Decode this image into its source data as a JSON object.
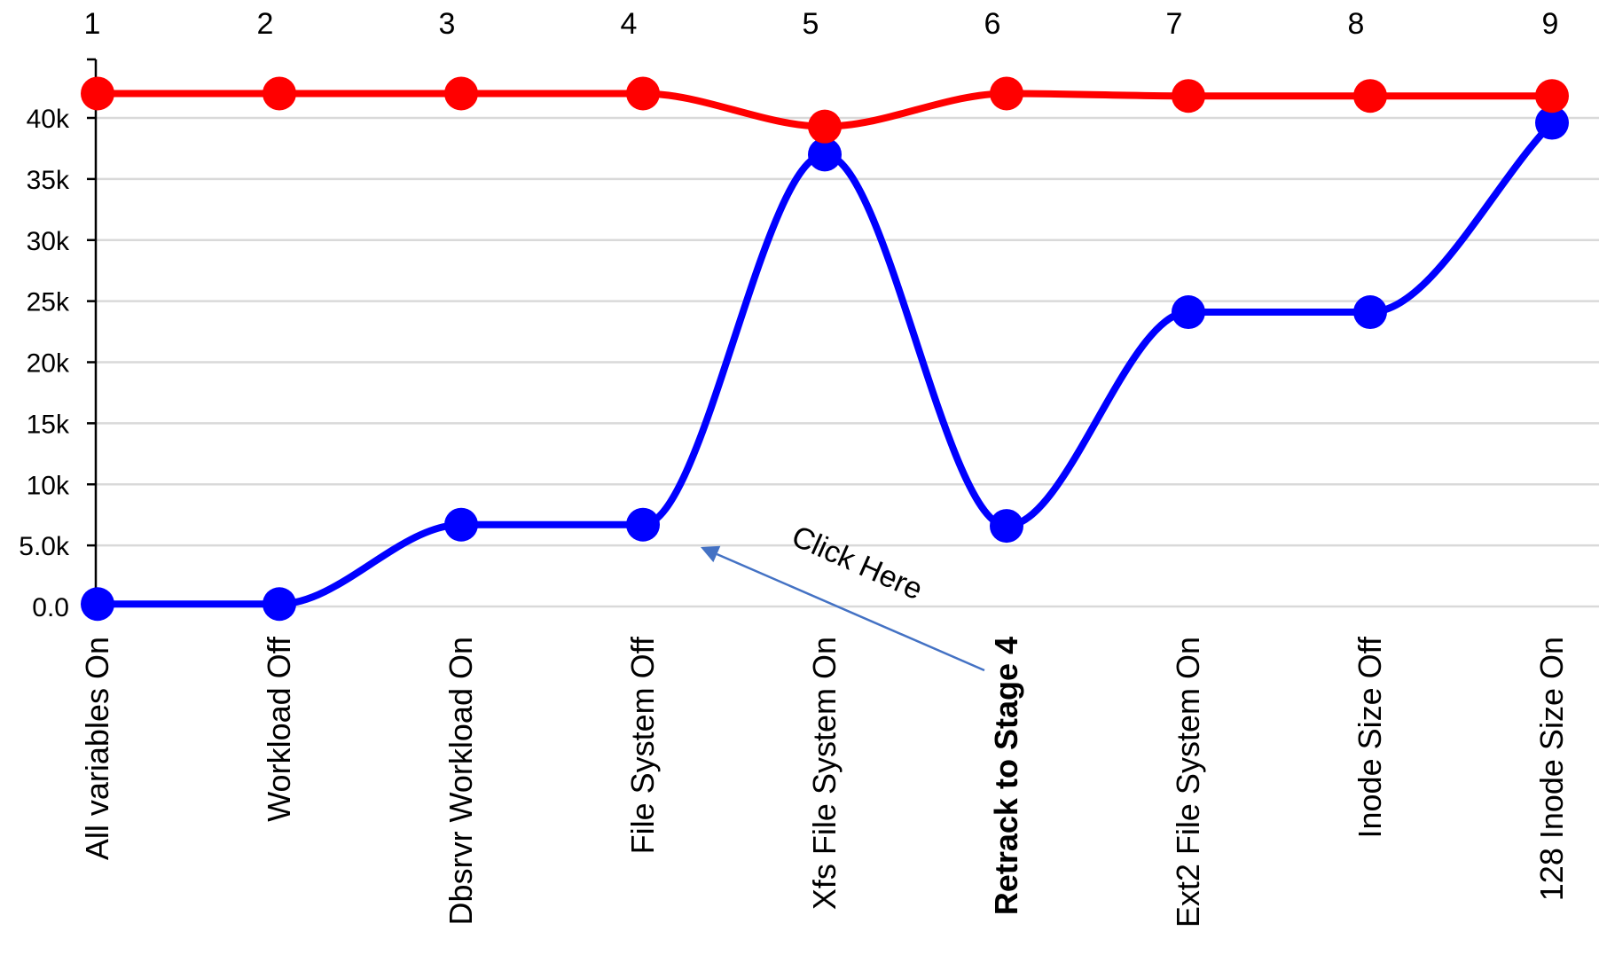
{
  "chart_data": {
    "type": "line",
    "stage_numbers": [
      "1",
      "2",
      "3",
      "4",
      "5",
      "6",
      "7",
      "8",
      "9"
    ],
    "categories": [
      "All variables On",
      "Workload Off",
      "Dbsrvr  Workload On",
      "File System Off",
      "Xfs File System On",
      "Retrack to Stage 4",
      "Ext2 File System On",
      "Inode Size Off",
      "128 Inode Size On"
    ],
    "bold_category_index": 5,
    "y_ticks": [
      {
        "value": 0,
        "label": "0.0"
      },
      {
        "value": 5000,
        "label": "5.0k"
      },
      {
        "value": 10000,
        "label": "10k"
      },
      {
        "value": 15000,
        "label": "15k"
      },
      {
        "value": 20000,
        "label": "20k"
      },
      {
        "value": 25000,
        "label": "25k"
      },
      {
        "value": 30000,
        "label": "30k"
      },
      {
        "value": 35000,
        "label": "35k"
      },
      {
        "value": 40000,
        "label": "40k"
      }
    ],
    "ylim": [
      0,
      42000
    ],
    "grid": true,
    "series": [
      {
        "color": "#ff0000",
        "values": [
          42000,
          42000,
          42000,
          42000,
          39300,
          42000,
          41800,
          41800,
          41800
        ]
      },
      {
        "color": "#0000ff",
        "values": [
          200,
          200,
          6700,
          6700,
          37000,
          6600,
          24100,
          24100,
          39600
        ]
      }
    ],
    "annotation": {
      "text": "Click Here",
      "points_to_index": 3,
      "color": "#4472c4"
    }
  }
}
